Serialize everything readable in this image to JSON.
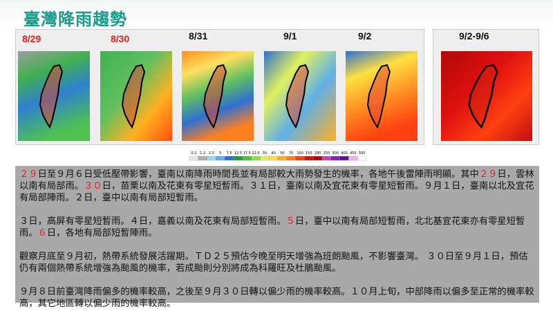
{
  "header": {
    "title": "臺灣降雨趨勢"
  },
  "panels": [
    {
      "date": "8/29",
      "color": "#e02020"
    },
    {
      "date": "8/30",
      "color": "#e02020"
    },
    {
      "date": "8/31",
      "color": "#111111"
    },
    {
      "date": "9/1",
      "color": "#111111"
    },
    {
      "date": "9/2",
      "color": "#111111"
    },
    {
      "date": "9/2-9/6",
      "color": "#111111"
    }
  ],
  "colorbar": {
    "labels": [
      0.2,
      1.2,
      2.5,
      5,
      7.5,
      12.5,
      17.5,
      22.5,
      30,
      40,
      50,
      70,
      100,
      150,
      200,
      250,
      300,
      400,
      450,
      500
    ],
    "colors": [
      "#e8e8e8",
      "#b0b0b0",
      "#a0d8f0",
      "#60b0e8",
      "#3070d0",
      "#20a040",
      "#50c040",
      "#90e040",
      "#e0f060",
      "#ffe040",
      "#ffb020",
      "#ff8020",
      "#ff4010",
      "#e01010",
      "#b00808",
      "#c040c0",
      "#9020b0",
      "#6010a0",
      "#f0b0f0",
      "#ffffff"
    ]
  },
  "notes": {
    "paragraphs": [
      [
        {
          "text": "２９",
          "color": "#e02020"
        },
        {
          "text": "日至９月６日受低壓帶影響，臺南以南降雨時間長並有局部較大雨勢發生的機率，各地午後雷陣雨明顯。其中",
          "color": "#111111"
        },
        {
          "text": "２９",
          "color": "#e02020"
        },
        {
          "text": "日，雲林以南有局部雨。",
          "color": "#111111"
        },
        {
          "text": "３０",
          "color": "#e02020"
        },
        {
          "text": "日，苗栗以南及花東有零星短暫雨。３１日，臺南以南及宜花東有零星短暫雨。９月１日，臺南以北及宜花有局部陣雨。２日，臺中以南有局部短暫雨。",
          "color": "#111111"
        }
      ],
      [
        {
          "text": "３日，高屏有零星短暫雨。４日，嘉義以南及花東有局部短暫雨。",
          "color": "#111111"
        },
        {
          "text": "５",
          "color": "#e02020"
        },
        {
          "text": "日，臺中以南有局部短暫雨，北北基宜花東亦有零星短暫雨。",
          "color": "#111111"
        },
        {
          "text": "６",
          "color": "#e02020"
        },
        {
          "text": "日，各地有局部短暫陣雨。",
          "color": "#111111"
        }
      ],
      [
        {
          "text": "觀察月底至９月初，熱帶系統發展活躍期。ＴＤ２５預估今晚至明天增強為班朗颱風，不影響臺灣。 ３０日至９月１日，預估仍有兩個熱帶系統增強為颱風的機率，若成颱則分別將成為科羅旺及杜鵑颱風。",
          "color": "#111111"
        }
      ],
      [
        {
          "text": "９月８日前臺灣降雨偏多的機率較高，之後至９月３０日轉以偏少雨的機率較高。１０月上旬，中部降雨以偏多至正常的機率較高，其它地區轉以偏少雨的機率較高。",
          "color": "#111111"
        }
      ]
    ]
  }
}
